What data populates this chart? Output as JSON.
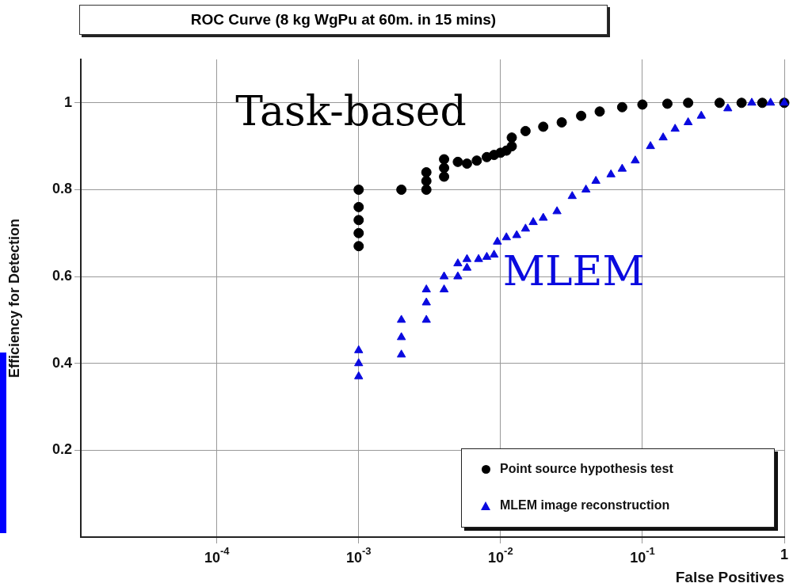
{
  "chart_data": {
    "type": "scatter",
    "title": "ROC Curve (8 kg WgPu at 60m. in 15 mins)",
    "xlabel": "False Positives",
    "ylabel": "Efficiency for Detection",
    "log": "x",
    "xlim": [
      1.1e-05,
      1
    ],
    "ylim": [
      0,
      1.1
    ],
    "xticks": [
      {
        "value": 0.0001,
        "label": "10$^{-4}$"
      },
      {
        "value": 0.001,
        "label": "10$^{-3}$"
      },
      {
        "value": 0.01,
        "label": "10$^{-2}$"
      },
      {
        "value": 0.1,
        "label": "10$^{-1}$"
      },
      1
    ],
    "yticks": [
      0.2,
      0.4,
      0.6,
      0.8,
      1
    ],
    "grid": true,
    "legend": "bottom right",
    "series": [
      {
        "name": "Point source hypothesis test",
        "color": "#000000",
        "marker": "circle",
        "x": [
          0.001,
          0.001,
          0.001,
          0.001,
          0.001,
          0.002,
          0.003,
          0.003,
          0.003,
          0.004,
          0.004,
          0.004,
          0.005,
          0.0058,
          0.0068,
          0.008,
          0.009,
          0.01,
          0.011,
          0.012,
          0.012,
          0.015,
          0.02,
          0.027,
          0.037,
          0.05,
          0.072,
          0.1,
          0.15,
          0.21,
          0.35,
          0.5,
          0.7,
          1
        ],
        "values": [
          0.67,
          0.7,
          0.73,
          0.76,
          0.8,
          0.8,
          0.8,
          0.82,
          0.84,
          0.83,
          0.85,
          0.87,
          0.864,
          0.86,
          0.867,
          0.875,
          0.88,
          0.885,
          0.89,
          0.9,
          0.92,
          0.935,
          0.945,
          0.955,
          0.97,
          0.98,
          0.99,
          0.996,
          0.998,
          1,
          1,
          1,
          1,
          1
        ]
      },
      {
        "name": "MLEM image reconstruction",
        "color": "#0a0adf",
        "marker": "triangle",
        "x": [
          0.001,
          0.001,
          0.001,
          0.002,
          0.002,
          0.002,
          0.003,
          0.003,
          0.003,
          0.004,
          0.004,
          0.005,
          0.005,
          0.0058,
          0.0058,
          0.007,
          0.008,
          0.009,
          0.0095,
          0.011,
          0.013,
          0.015,
          0.017,
          0.02,
          0.025,
          0.032,
          0.04,
          0.047,
          0.06,
          0.072,
          0.089,
          0.114,
          0.14,
          0.17,
          0.21,
          0.26,
          0.4,
          0.59,
          0.8,
          1
        ],
        "values": [
          0.37,
          0.4,
          0.43,
          0.42,
          0.46,
          0.5,
          0.5,
          0.54,
          0.57,
          0.57,
          0.6,
          0.6,
          0.63,
          0.62,
          0.64,
          0.64,
          0.645,
          0.65,
          0.68,
          0.69,
          0.695,
          0.71,
          0.725,
          0.735,
          0.75,
          0.785,
          0.8,
          0.82,
          0.835,
          0.848,
          0.867,
          0.9,
          0.92,
          0.94,
          0.955,
          0.97,
          0.987,
          1,
          1,
          1
        ]
      }
    ],
    "annotations": [
      "Task-based",
      "MLEM"
    ]
  }
}
